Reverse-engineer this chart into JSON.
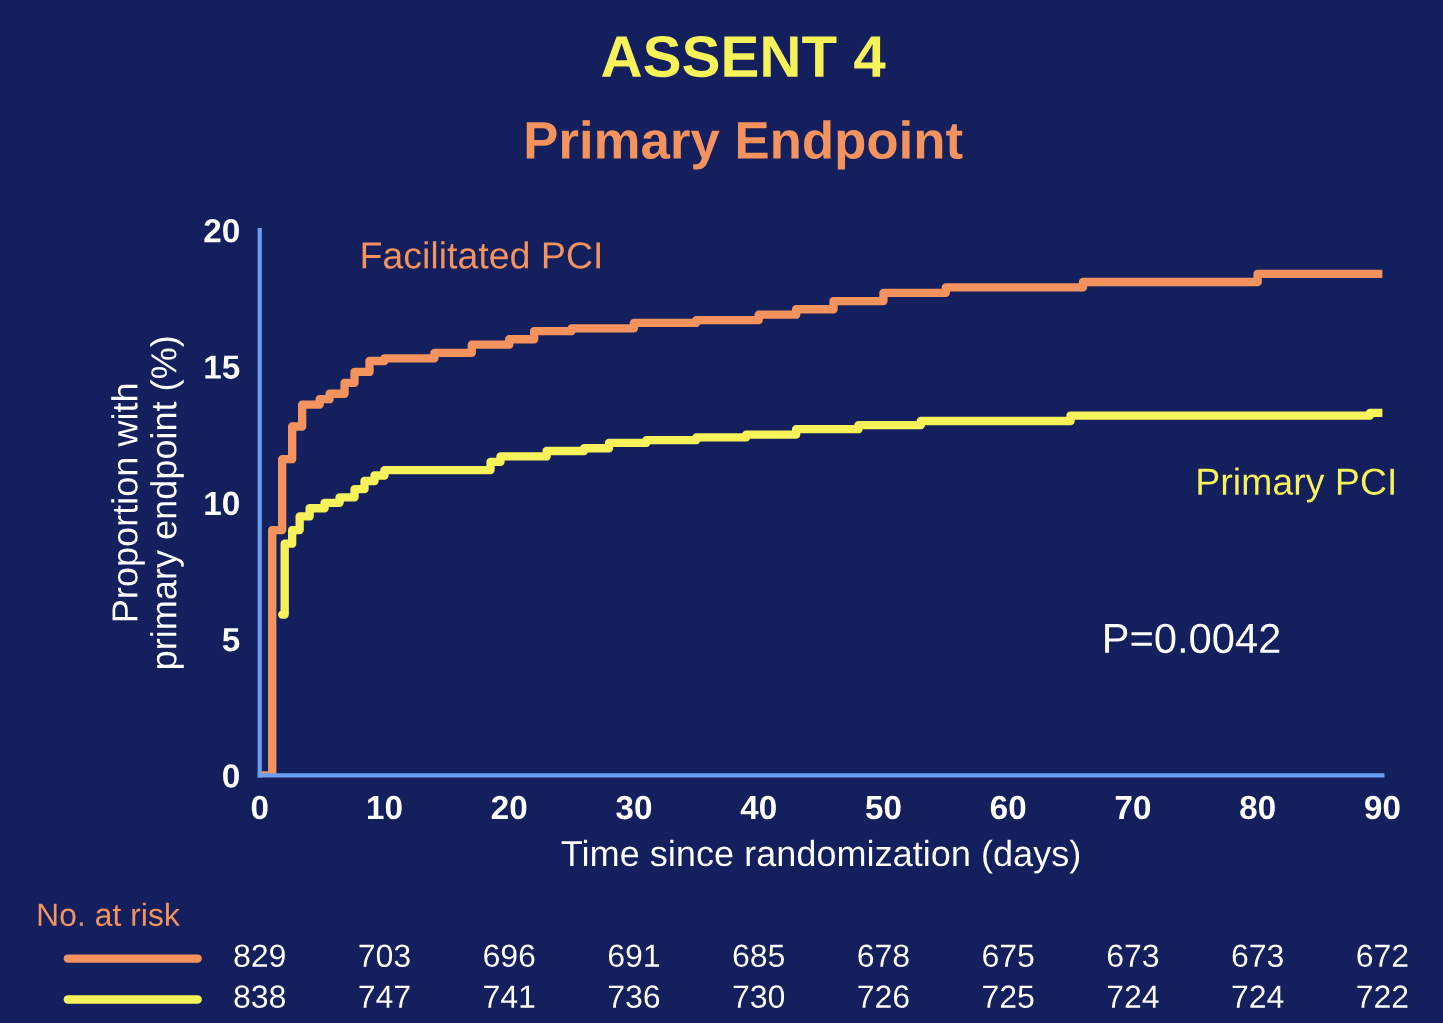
{
  "chart_data": {
    "type": "step",
    "title": "ASSENT 4",
    "subtitle": "Primary Endpoint",
    "xlabel": "Time since randomization (days)",
    "ylabel": "Proportion with\nprimary endpoint (%)",
    "xlim": [
      0,
      90
    ],
    "xticks": [
      0,
      10,
      20,
      30,
      40,
      50,
      60,
      70,
      80,
      90
    ],
    "ylim": [
      0,
      20
    ],
    "yticks": [
      0,
      5,
      10,
      15,
      20
    ],
    "grid": false,
    "legend": false,
    "series": [
      {
        "name": "Facilitated PCI",
        "color": "#f4935e",
        "x": [
          0.2,
          1.0,
          1.8,
          2.6,
          3.4,
          4.8,
          5.6,
          6.8,
          7.6,
          8.8,
          10,
          14,
          17,
          20,
          22,
          25,
          30,
          35,
          40,
          43,
          46,
          50,
          55,
          66,
          80,
          90
        ],
        "values": [
          0,
          9.0,
          11.6,
          12.8,
          13.6,
          13.8,
          14.0,
          14.4,
          14.8,
          15.2,
          15.3,
          15.5,
          15.8,
          16.0,
          16.3,
          16.4,
          16.6,
          16.7,
          16.9,
          17.1,
          17.4,
          17.7,
          17.9,
          18.1,
          18.4,
          18.4
        ]
      },
      {
        "name": "Primary PCI",
        "color": "#f8f25a",
        "x": [
          1.8,
          2.0,
          2.6,
          3.2,
          4.0,
          5.2,
          6.4,
          7.6,
          8.4,
          9.2,
          10,
          18.5,
          19.3,
          23,
          26,
          28,
          31,
          35,
          39,
          43,
          48,
          53,
          65,
          89,
          90
        ],
        "values": [
          5.9,
          8.5,
          9.0,
          9.5,
          9.8,
          10.0,
          10.2,
          10.5,
          10.8,
          11.0,
          11.2,
          11.5,
          11.7,
          11.9,
          12.0,
          12.2,
          12.3,
          12.4,
          12.5,
          12.7,
          12.85,
          13.0,
          13.2,
          13.3,
          13.3
        ]
      }
    ],
    "annotations": [
      "P=0.0042",
      "No. at risk",
      "829",
      "703",
      "696",
      "691",
      "685",
      "678",
      "675",
      "673",
      "673",
      "672",
      "838",
      "747",
      "741",
      "736",
      "730",
      "726",
      "725",
      "724",
      "724",
      "722"
    ]
  }
}
